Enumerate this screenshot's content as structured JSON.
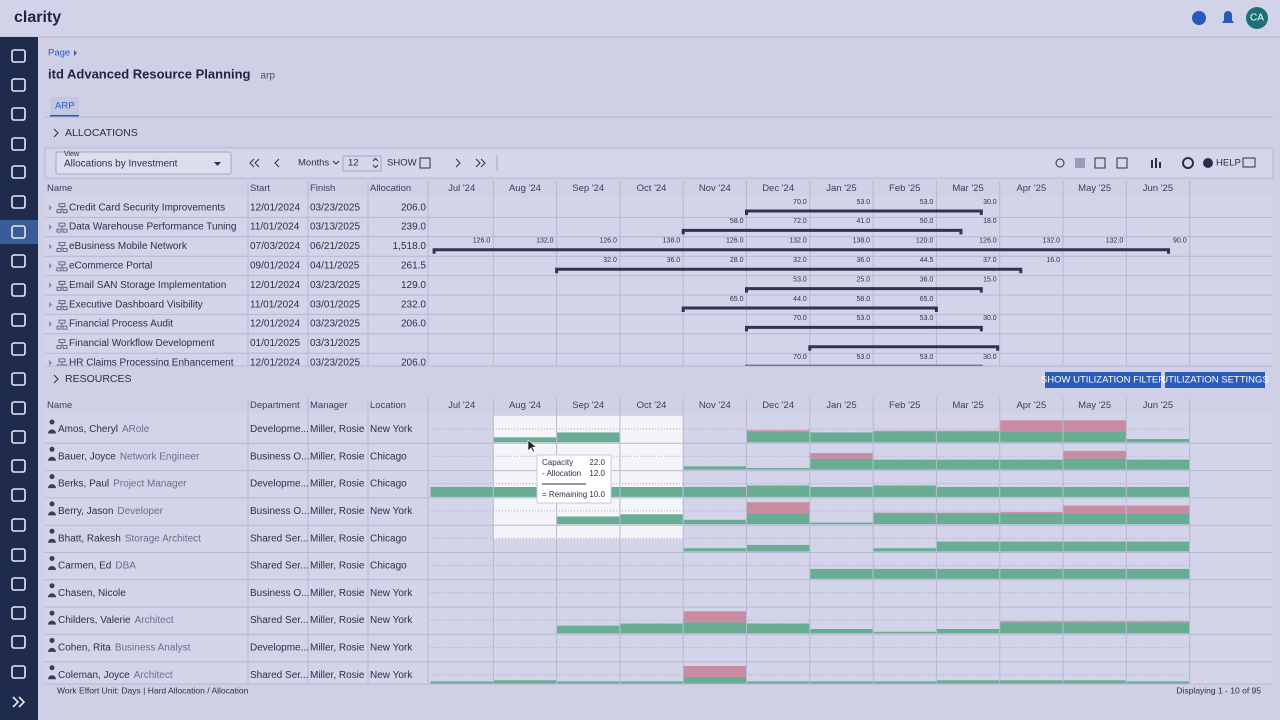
{
  "header": {
    "brand": "clarity",
    "avatar": "CA"
  },
  "breadcrumb": "Page",
  "title": "itd Advanced Resource Planning",
  "code": "arp",
  "tab": "ARP",
  "months": [
    "Jul '24",
    "Aug '24",
    "Sep '24",
    "Oct '24",
    "Nov '24",
    "Dec '24",
    "Jan '25",
    "Feb '25",
    "Mar '25",
    "Apr '25",
    "May '25",
    "Jun '25"
  ],
  "allocations": {
    "section": "ALLOCATIONS",
    "view_label": "View",
    "view": "Allocations by Investment",
    "period": "Months",
    "count": "12",
    "show": "SHOW",
    "help": "HELP",
    "columns": [
      "Name",
      "Start",
      "Finish",
      "Allocation"
    ],
    "rows": [
      {
        "name": "Credit Card Security Improvements",
        "start": "12/01/2024",
        "finish": "03/23/2025",
        "allocation": "206.0",
        "cells": [
          null,
          null,
          null,
          null,
          null,
          "70.0",
          "53.0",
          "53.0",
          "30.0",
          null,
          null,
          null
        ]
      },
      {
        "name": "Data Warehouse Performance Tuning",
        "start": "11/01/2024",
        "finish": "03/13/2025",
        "allocation": "239.0",
        "cells": [
          null,
          null,
          null,
          null,
          "58.0",
          "72.0",
          "41.0",
          "50.0",
          "18.0",
          null,
          null,
          null
        ]
      },
      {
        "name": "eBusiness Mobile Network",
        "start": "07/03/2024",
        "finish": "06/21/2025",
        "allocation": "1,518.0",
        "cells": [
          "126.0",
          "132.0",
          "126.0",
          "138.0",
          "126.0",
          "132.0",
          "138.0",
          "120.0",
          "126.0",
          "132.0",
          "132.0",
          "90.0"
        ]
      },
      {
        "name": "eCommerce Portal",
        "start": "09/01/2024",
        "finish": "04/11/2025",
        "allocation": "261.5",
        "cells": [
          null,
          null,
          "32.0",
          "36.0",
          "28.0",
          "32.0",
          "36.0",
          "44.5",
          "37.0",
          "16.0",
          null,
          null
        ]
      },
      {
        "name": "Email SAN Storage Implementation",
        "start": "12/01/2024",
        "finish": "03/23/2025",
        "allocation": "129.0",
        "cells": [
          null,
          null,
          null,
          null,
          null,
          "53.0",
          "25.0",
          "36.0",
          "15.0",
          null,
          null,
          null
        ]
      },
      {
        "name": "Executive Dashboard Visibility",
        "start": "11/01/2024",
        "finish": "03/01/2025",
        "allocation": "232.0",
        "cells": [
          null,
          null,
          null,
          null,
          "65.0",
          "44.0",
          "58.0",
          "65.0",
          null,
          null,
          null,
          null
        ]
      },
      {
        "name": "Financial Process Audit",
        "start": "12/01/2024",
        "finish": "03/23/2025",
        "allocation": "206.0",
        "cells": [
          null,
          null,
          null,
          null,
          null,
          "70.0",
          "53.0",
          "53.0",
          "30.0",
          null,
          null,
          null
        ]
      },
      {
        "name": "Financial Workflow Development",
        "start": "01/01/2025",
        "finish": "03/31/2025",
        "allocation": null,
        "cells": [
          null,
          null,
          null,
          null,
          null,
          null,
          null,
          null,
          null,
          null,
          null,
          null
        ]
      },
      {
        "name": "HR Claims Processing Enhancement",
        "start": "12/01/2024",
        "finish": "03/23/2025",
        "allocation": "206.0",
        "cells": [
          null,
          null,
          null,
          null,
          null,
          "70.0",
          "53.0",
          "53.0",
          "30.0",
          null,
          null,
          null
        ]
      }
    ]
  },
  "resources": {
    "section": "RESOURCES",
    "buttons": [
      "SHOW UTILIZATION FILTER",
      "UTILIZATION SETTINGS"
    ],
    "columns": [
      "Name",
      "Department",
      "Manager",
      "Location"
    ],
    "rows": [
      {
        "name": "Amos, Cheryl",
        "role": "ARole",
        "department": "Developme...",
        "manager": "Miller, Rosie",
        "location": "New York",
        "load": [
          null,
          45,
          90,
          null,
          null,
          110,
          90,
          105,
          105,
          200,
          200,
          30
        ]
      },
      {
        "name": "Bauer, Joyce",
        "role": "Network Engineer",
        "department": "Business O...",
        "manager": "Miller, Rosie",
        "location": "Chicago",
        "load": [
          null,
          null,
          null,
          null,
          30,
          15,
          150,
          90,
          90,
          90,
          170,
          90
        ]
      },
      {
        "name": "Berks, Paul",
        "role": "Project Manager",
        "department": "Developme...",
        "manager": "Miller, Rosie",
        "location": "Chicago",
        "load": [
          90,
          90,
          90,
          90,
          90,
          105,
          90,
          105,
          90,
          90,
          90,
          90
        ]
      },
      {
        "name": "Berry, Jason",
        "role": "Developer",
        "department": "Business O...",
        "manager": "Miller, Rosie",
        "location": "New York",
        "load": [
          null,
          null,
          70,
          90,
          40,
          200,
          15,
          105,
          105,
          110,
          170,
          170
        ]
      },
      {
        "name": "Bhatt, Rakesh",
        "role": "Storage Architect",
        "department": "Shared Ser...",
        "manager": "Miller, Rosie",
        "location": "Chicago",
        "load": [
          null,
          null,
          null,
          null,
          30,
          60,
          null,
          30,
          90,
          90,
          90,
          90
        ]
      },
      {
        "name": "Carmen, Ed",
        "role": "DBA",
        "department": "Shared Ser...",
        "manager": "Miller, Rosie",
        "location": "Chicago",
        "load": [
          null,
          null,
          null,
          null,
          null,
          null,
          90,
          90,
          90,
          90,
          90,
          90
        ]
      },
      {
        "name": "Chasen, Nicole",
        "department": "Business O...",
        "manager": "Miller, Rosie",
        "location": "New York",
        "load": [
          null,
          null,
          null,
          null,
          null,
          null,
          null,
          null,
          null,
          null,
          null,
          null
        ]
      },
      {
        "name": "Childers, Valerie",
        "role": "Architect",
        "department": "Shared Ser...",
        "manager": "Miller, Rosie",
        "location": "New York",
        "load": [
          null,
          null,
          70,
          90,
          200,
          90,
          40,
          15,
          40,
          110,
          110,
          110
        ]
      },
      {
        "name": "Cohen, Rita",
        "role": "Business Analyst",
        "department": "Developme...",
        "manager": "Miller, Rosie",
        "location": "New York",
        "load": [
          null,
          null,
          null,
          null,
          null,
          null,
          null,
          null,
          null,
          null,
          null,
          null
        ]
      },
      {
        "name": "Coleman, Joyce",
        "role": "Architect",
        "department": "Shared Ser...",
        "manager": "Miller, Rosie",
        "location": "New York",
        "load": [
          60,
          70,
          60,
          60,
          200,
          60,
          60,
          60,
          70,
          70,
          70,
          60
        ]
      }
    ],
    "tooltip": [
      {
        "label": "Capacity",
        "value": "22.0"
      },
      {
        "label": "- Allocation",
        "value": "12.0"
      },
      {
        "label": "= Remaining",
        "value": "10.0"
      }
    ]
  },
  "footer": {
    "left": "Work Effort Unit: Days | Hard Allocation / Allocation",
    "right": "Displaying 1 - 10 of 95"
  }
}
